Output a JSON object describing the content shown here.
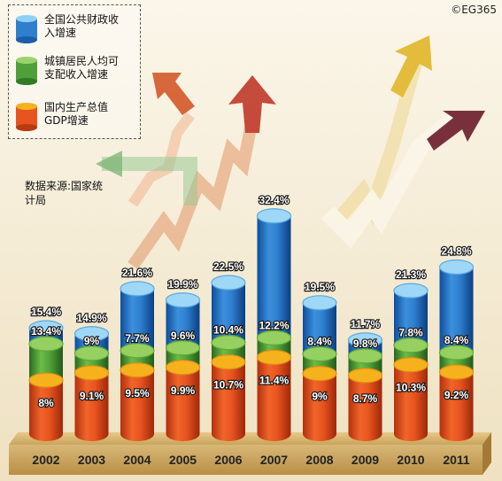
{
  "copyright": "©EG365",
  "source_note": "数据来源:国家统计局",
  "colors": {
    "fiscal": "#2f7fcf",
    "income": "#4f9f3a",
    "gdp": "#e8541f",
    "background": "#f3ead4"
  },
  "chart_data": {
    "type": "bar",
    "categories": [
      "2002",
      "2003",
      "2004",
      "2005",
      "2006",
      "2007",
      "2008",
      "2009",
      "2010",
      "2011"
    ],
    "series": [
      {
        "name": "全国公共财政收入增速",
        "values": [
          15.4,
          14.9,
          21.6,
          19.9,
          22.5,
          32.4,
          19.5,
          11.7,
          21.3,
          24.8
        ],
        "labels": [
          "15.4%",
          "14.9%",
          "21.6%",
          "19.9%",
          "22.5%",
          "32.4%",
          "19.5%",
          "11.7%",
          "21.3%",
          "24.8%"
        ]
      },
      {
        "name": "城镇居民人均可支配收入增速",
        "values": [
          13.4,
          9,
          7.7,
          9.6,
          10.4,
          12.2,
          8.4,
          9.8,
          7.8,
          8.4
        ],
        "labels": [
          "13.4%",
          "9%",
          "7.7%",
          "9.6%",
          "10.4%",
          "12.2%",
          "8.4%",
          "9.8%",
          "7.8%",
          "8.4%"
        ]
      },
      {
        "name": "国内生产总值GDP增速",
        "values": [
          8,
          9.1,
          9.5,
          9.9,
          10.7,
          11.4,
          9,
          8.7,
          10.3,
          9.2
        ],
        "labels": [
          "8%",
          "9.1%",
          "9.5%",
          "9.9%",
          "10.7%",
          "11.4%",
          "9%",
          "8.7%",
          "10.3%",
          "9.2%"
        ]
      }
    ]
  }
}
